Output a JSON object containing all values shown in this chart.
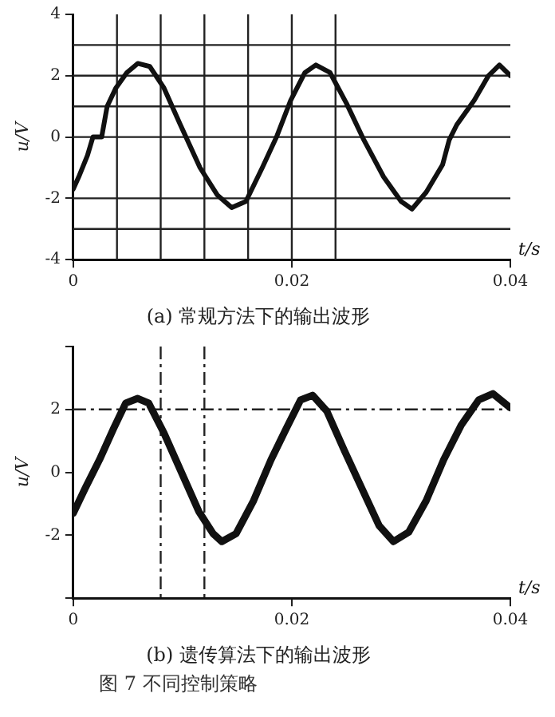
{
  "chart_data": [
    {
      "type": "line",
      "title": "(a) 常规方法下的输出波形",
      "xlabel": "t/s",
      "ylabel": "u/V",
      "xlim": [
        0,
        0.04
      ],
      "xticks": [
        0,
        0.02,
        0.04
      ],
      "ylim": [
        -4,
        4
      ],
      "yticks": [
        -4,
        -2,
        0,
        2,
        4
      ],
      "grid": false,
      "legend": false,
      "marker": "none",
      "line_style": "solid",
      "series": [
        {
          "color": "#111111",
          "x": [
            0,
            0.0005,
            0.0013,
            0.0018,
            0.0026,
            0.0031,
            0.0039,
            0.0049,
            0.0059,
            0.007,
            0.0083,
            0.0098,
            0.0116,
            0.0132,
            0.0145,
            0.0158,
            0.0173,
            0.0186,
            0.0199,
            0.0212,
            0.0222,
            0.0235,
            0.025,
            0.0266,
            0.0284,
            0.03,
            0.031,
            0.0323,
            0.0338,
            0.0344,
            0.0351,
            0.0367,
            0.038,
            0.039,
            0.04
          ],
          "values": [
            -1.7,
            -1.3,
            -0.6,
            0,
            0,
            1.0,
            1.6,
            2.1,
            2.4,
            2.3,
            1.6,
            0.4,
            -1.0,
            -1.9,
            -2.3,
            -2.1,
            -1.0,
            0,
            1.2,
            2.1,
            2.35,
            2.1,
            1.1,
            -0.1,
            -1.3,
            -2.1,
            -2.35,
            -1.8,
            -0.9,
            -0.1,
            0.4,
            1.2,
            2.0,
            2.35,
            2.0
          ]
        }
      ],
      "ref_lines": [
        {
          "axis": "y",
          "value": 3,
          "line_style": "solid"
        },
        {
          "axis": "y",
          "value": 2,
          "line_style": "solid"
        },
        {
          "axis": "y",
          "value": 1,
          "line_style": "solid"
        },
        {
          "axis": "y",
          "value": 0,
          "line_style": "solid"
        },
        {
          "axis": "y",
          "value": -2,
          "line_style": "solid"
        },
        {
          "axis": "y",
          "value": -3,
          "line_style": "solid"
        },
        {
          "axis": "x",
          "value": 0.004,
          "line_style": "solid"
        },
        {
          "axis": "x",
          "value": 0.008,
          "line_style": "solid"
        },
        {
          "axis": "x",
          "value": 0.012,
          "line_style": "solid"
        },
        {
          "axis": "x",
          "value": 0.016,
          "line_style": "solid"
        },
        {
          "axis": "x",
          "value": 0.02,
          "line_style": "solid"
        },
        {
          "axis": "x",
          "value": 0.024,
          "line_style": "solid"
        }
      ]
    },
    {
      "type": "line",
      "title": "(b) 遗传算法下的输出波形",
      "xlabel": "t/s",
      "ylabel": "u/V",
      "xlim": [
        0,
        0.04
      ],
      "xticks": [
        0,
        0.02,
        0.04
      ],
      "ylim": [
        -4,
        4
      ],
      "yticks": [
        {
          "value": -4,
          "label": null
        },
        -2,
        0,
        2,
        {
          "value": 4,
          "label": null
        }
      ],
      "grid": false,
      "legend": false,
      "marker": "none",
      "line_style": "solid",
      "series": [
        {
          "color": "#111111",
          "x": [
            0,
            0.0011,
            0.0024,
            0.0037,
            0.0048,
            0.0059,
            0.0069,
            0.0083,
            0.0099,
            0.0115,
            0.0128,
            0.0136,
            0.0149,
            0.0165,
            0.0181,
            0.0195,
            0.0208,
            0.0219,
            0.0232,
            0.0248,
            0.0264,
            0.028,
            0.0293,
            0.0307,
            0.0323,
            0.0339,
            0.0355,
            0.0371,
            0.0384,
            0.04
          ],
          "values": [
            -1.3,
            -0.5,
            0.4,
            1.4,
            2.2,
            2.35,
            2.2,
            1.25,
            0,
            -1.25,
            -1.95,
            -2.2,
            -1.95,
            -0.9,
            0.4,
            1.4,
            2.3,
            2.45,
            1.95,
            0.7,
            -0.5,
            -1.7,
            -2.2,
            -1.9,
            -0.9,
            0.4,
            1.5,
            2.3,
            2.5,
            2.05
          ]
        }
      ],
      "ref_lines": [
        {
          "axis": "y",
          "value": 2,
          "line_style": "dashed"
        },
        {
          "axis": "x",
          "value": 0.008,
          "line_style": "dashed"
        },
        {
          "axis": "x",
          "value": 0.012,
          "line_style": "dashed"
        }
      ],
      "annotations": [
        "图 7  不同控制策略"
      ]
    }
  ]
}
